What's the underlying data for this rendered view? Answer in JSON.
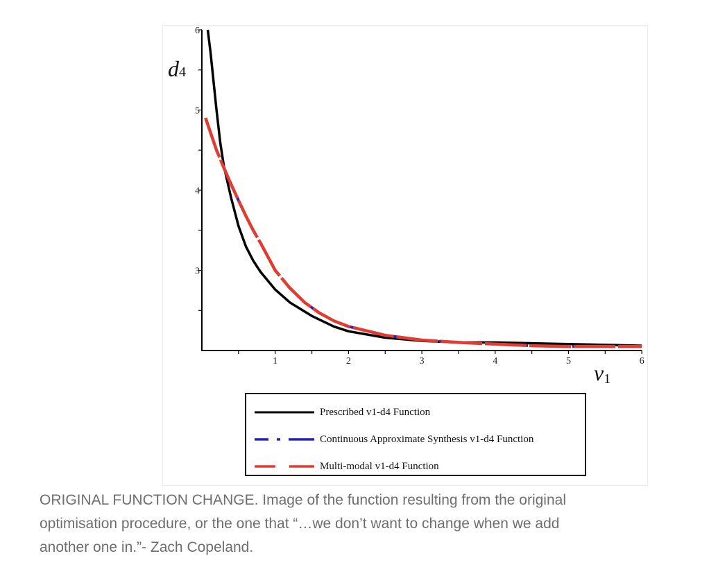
{
  "chart_data": {
    "type": "line",
    "title": "",
    "xlabel": "v",
    "xlabel_sub": "1",
    "ylabel": "d",
    "ylabel_sub": "4",
    "xlim": [
      0,
      6
    ],
    "ylim": [
      2,
      6
    ],
    "x_ticks": [
      1,
      2,
      3,
      4,
      5,
      6
    ],
    "y_ticks": [
      3,
      4,
      5,
      6
    ],
    "grid": false,
    "legend_placement": "bottom",
    "series": [
      {
        "name": "Prescribed v1-d4 Function",
        "color": "#000000",
        "style": "solid",
        "x": [
          0.08,
          0.12,
          0.16,
          0.2,
          0.25,
          0.3,
          0.4,
          0.5,
          0.6,
          0.7,
          0.8,
          1.0,
          1.2,
          1.5,
          1.8,
          2.0,
          2.5,
          3.0,
          3.5,
          4.0,
          4.5,
          5.0,
          5.5,
          6.0
        ],
        "y": [
          6.0,
          5.7,
          5.35,
          5.0,
          4.6,
          4.3,
          3.9,
          3.55,
          3.3,
          3.12,
          2.98,
          2.76,
          2.6,
          2.43,
          2.3,
          2.24,
          2.16,
          2.12,
          2.1,
          2.1,
          2.09,
          2.08,
          2.07,
          2.06
        ]
      },
      {
        "name": "Continuous Approximate Synthesis v1-d4 Function",
        "color": "#1f1fd0",
        "style": "dash-dot",
        "x": [
          0.05,
          0.2,
          0.3,
          0.4,
          0.5,
          0.6,
          0.7,
          0.8,
          1.0,
          1.2,
          1.4,
          1.6,
          1.8,
          2.0,
          2.5,
          3.0,
          3.5,
          4.0,
          4.5,
          5.0,
          5.5,
          6.0
        ],
        "y": [
          4.9,
          4.5,
          4.28,
          4.07,
          3.87,
          3.68,
          3.5,
          3.34,
          3.0,
          2.78,
          2.6,
          2.47,
          2.37,
          2.3,
          2.19,
          2.13,
          2.1,
          2.08,
          2.06,
          2.05,
          2.05,
          2.05
        ]
      },
      {
        "name": "Multi-modal v1-d4 Function",
        "color": "#e03c31",
        "style": "dashed",
        "x": [
          0.05,
          0.2,
          0.3,
          0.4,
          0.5,
          0.6,
          0.7,
          0.8,
          1.0,
          1.2,
          1.4,
          1.6,
          1.8,
          2.0,
          2.5,
          3.0,
          3.5,
          4.0,
          4.5,
          5.0,
          5.5,
          6.0
        ],
        "y": [
          4.9,
          4.5,
          4.28,
          4.07,
          3.87,
          3.68,
          3.5,
          3.34,
          3.0,
          2.78,
          2.6,
          2.47,
          2.37,
          2.3,
          2.19,
          2.13,
          2.1,
          2.08,
          2.06,
          2.05,
          2.05,
          2.05
        ]
      }
    ]
  },
  "caption": {
    "lines": [
      "ORIGINAL FUNCTION CHANGE.  Image of the function resulting from the original",
      "optimisation procedure, or the one that “…we don’t want to change when we add",
      "another one in.”- Zach Copeland."
    ]
  }
}
